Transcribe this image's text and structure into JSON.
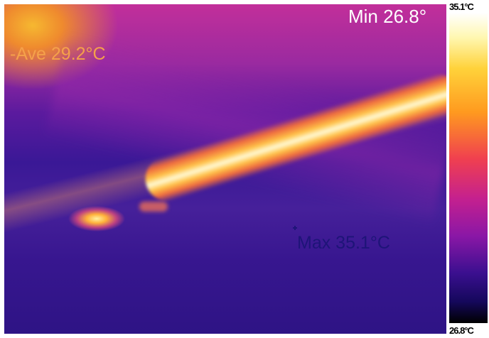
{
  "readouts": {
    "min": "Min 26.8°",
    "average": "-Ave 29.2°C",
    "max": "Max 35.1°C"
  },
  "color_scale": {
    "top_label": "35.1°C",
    "bottom_label": "26.8°C",
    "palette": [
      "#ffffff",
      "#ffd23a",
      "#ff9a1f",
      "#f0404f",
      "#c4208f",
      "#8a17a6",
      "#3a0f8f",
      "#000000"
    ]
  }
}
